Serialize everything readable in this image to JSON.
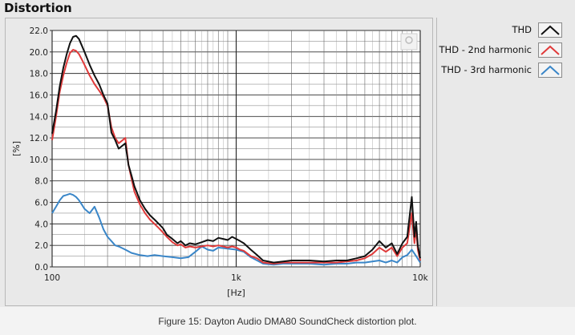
{
  "window": {
    "title": "Distortion"
  },
  "caption": "Figure 15: Dayton Audio DMA80 SoundCheck distortion plot.",
  "legend": {
    "items": [
      {
        "label": "THD",
        "color": "#111111"
      },
      {
        "label": "THD - 2nd harmonic",
        "color": "#e03a3a"
      },
      {
        "label": "THD - 3rd harmonic",
        "color": "#3a86c8"
      }
    ]
  },
  "chart_data": {
    "type": "line",
    "title": "Distortion",
    "xlabel": "[Hz]",
    "ylabel": "[%]",
    "xscale": "log",
    "xlim": [
      100,
      10000
    ],
    "ylim": [
      0,
      22
    ],
    "grid": true,
    "legend_position": "right",
    "x_ticks": [
      {
        "value": 100,
        "label": "100"
      },
      {
        "value": 1000,
        "label": "1k"
      },
      {
        "value": 10000,
        "label": "10k"
      }
    ],
    "y_ticks": [
      "0.0",
      "2.0",
      "4.0",
      "6.0",
      "8.0",
      "10.0",
      "12.0",
      "14.0",
      "16.0",
      "18.0",
      "20.0",
      "22.0"
    ],
    "series": [
      {
        "name": "THD",
        "color": "#111111",
        "x": [
          100,
          105,
          110,
          115,
          120,
          125,
          130,
          135,
          140,
          145,
          150,
          160,
          170,
          180,
          190,
          200,
          210,
          220,
          230,
          250,
          260,
          270,
          280,
          300,
          320,
          340,
          360,
          380,
          400,
          420,
          450,
          480,
          500,
          530,
          560,
          600,
          650,
          700,
          750,
          800,
          850,
          900,
          950,
          1000,
          1050,
          1100,
          1200,
          1300,
          1400,
          1600,
          1800,
          2000,
          2500,
          3000,
          3500,
          4000,
          4500,
          5000,
          5500,
          6000,
          6500,
          7000,
          7500,
          8000,
          8500,
          9000,
          9300,
          9500,
          9700,
          10000
        ],
        "values": [
          12.4,
          14.5,
          16.8,
          18.5,
          19.8,
          20.8,
          21.4,
          21.5,
          21.2,
          20.6,
          20.0,
          18.8,
          17.8,
          17.0,
          16.0,
          15.2,
          12.5,
          11.8,
          11.0,
          11.5,
          9.5,
          8.5,
          7.5,
          6.2,
          5.4,
          4.8,
          4.4,
          4.0,
          3.6,
          3.0,
          2.6,
          2.2,
          2.4,
          2.0,
          2.2,
          2.1,
          2.3,
          2.5,
          2.4,
          2.7,
          2.6,
          2.5,
          2.8,
          2.6,
          2.4,
          2.2,
          1.6,
          1.1,
          0.6,
          0.4,
          0.5,
          0.6,
          0.6,
          0.5,
          0.6,
          0.6,
          0.8,
          1.0,
          1.6,
          2.4,
          1.8,
          2.2,
          1.2,
          2.2,
          2.8,
          6.5,
          2.8,
          4.2,
          2.0,
          0.8
        ]
      },
      {
        "name": "THD - 2nd harmonic",
        "color": "#e03a3a",
        "x": [
          100,
          105,
          110,
          115,
          120,
          125,
          130,
          135,
          140,
          145,
          150,
          160,
          170,
          180,
          190,
          200,
          210,
          220,
          230,
          250,
          260,
          270,
          280,
          300,
          320,
          340,
          360,
          380,
          400,
          420,
          450,
          480,
          500,
          530,
          560,
          600,
          650,
          700,
          750,
          800,
          850,
          900,
          950,
          1000,
          1050,
          1100,
          1200,
          1300,
          1400,
          1600,
          1800,
          2000,
          2500,
          3000,
          3500,
          4000,
          4500,
          5000,
          5500,
          6000,
          6500,
          7000,
          7500,
          8000,
          8500,
          9000,
          9300,
          9500,
          9700,
          10000
        ],
        "values": [
          11.8,
          14.0,
          16.3,
          17.8,
          19.0,
          19.9,
          20.2,
          20.1,
          19.8,
          19.3,
          18.8,
          17.8,
          17.0,
          16.4,
          15.8,
          15.0,
          13.0,
          12.0,
          11.5,
          12.0,
          9.5,
          8.2,
          7.0,
          5.8,
          5.0,
          4.4,
          4.0,
          3.6,
          3.2,
          2.8,
          2.3,
          2.0,
          2.1,
          1.8,
          1.9,
          1.8,
          1.9,
          2.0,
          1.9,
          2.0,
          1.9,
          1.8,
          1.9,
          1.8,
          1.6,
          1.5,
          1.0,
          0.8,
          0.4,
          0.3,
          0.4,
          0.4,
          0.4,
          0.4,
          0.4,
          0.5,
          0.6,
          0.8,
          1.2,
          1.8,
          1.4,
          1.8,
          1.0,
          1.8,
          2.2,
          5.0,
          2.2,
          3.6,
          1.6,
          0.6
        ]
      },
      {
        "name": "THD - 3rd harmonic",
        "color": "#3a86c8",
        "x": [
          100,
          105,
          110,
          115,
          120,
          125,
          130,
          135,
          140,
          145,
          150,
          160,
          170,
          180,
          190,
          200,
          210,
          220,
          230,
          250,
          270,
          300,
          330,
          360,
          400,
          450,
          500,
          550,
          600,
          650,
          700,
          750,
          800,
          900,
          1000,
          1100,
          1200,
          1300,
          1400,
          1600,
          1800,
          2000,
          2500,
          3000,
          3500,
          4000,
          4500,
          5000,
          5500,
          6000,
          6500,
          7000,
          7500,
          8000,
          8500,
          9000,
          9500,
          10000
        ],
        "values": [
          5.0,
          5.6,
          6.2,
          6.6,
          6.7,
          6.8,
          6.7,
          6.5,
          6.2,
          5.8,
          5.4,
          5.0,
          5.6,
          4.6,
          3.5,
          2.8,
          2.4,
          2.0,
          1.9,
          1.6,
          1.3,
          1.1,
          1.0,
          1.1,
          1.0,
          0.9,
          0.8,
          0.9,
          1.4,
          1.9,
          1.6,
          1.5,
          1.8,
          1.7,
          1.6,
          1.4,
          0.9,
          0.6,
          0.3,
          0.2,
          0.3,
          0.3,
          0.3,
          0.2,
          0.3,
          0.3,
          0.4,
          0.4,
          0.5,
          0.6,
          0.4,
          0.6,
          0.4,
          0.9,
          1.1,
          1.6,
          1.0,
          0.4
        ]
      }
    ]
  }
}
